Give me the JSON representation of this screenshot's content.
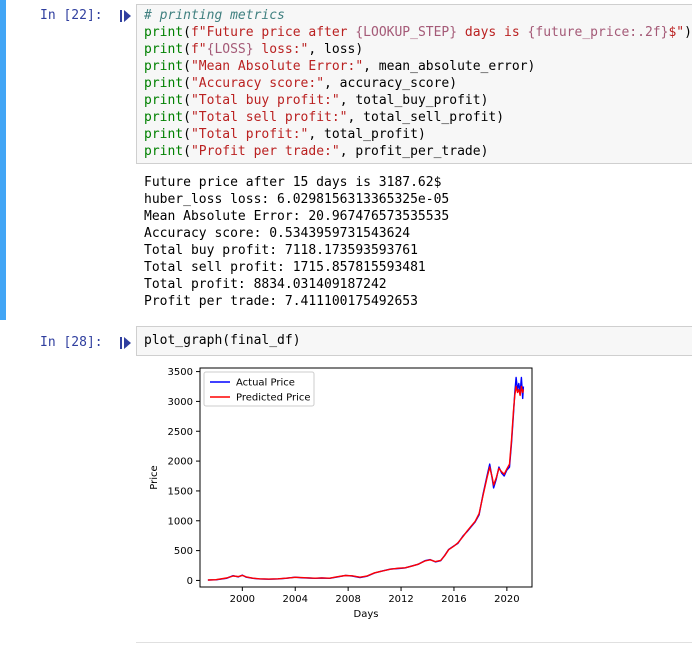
{
  "cell1": {
    "prompt": "In [22]:",
    "code_lines": [
      [
        {
          "c": "cm",
          "t": "# printing metrics"
        }
      ],
      [
        {
          "c": "kw",
          "t": "print"
        },
        {
          "c": "pr",
          "t": "("
        },
        {
          "c": "st",
          "t": "f\"Future price after "
        },
        {
          "c": "sf",
          "t": "{LOOKUP_STEP}"
        },
        {
          "c": "st",
          "t": " days is "
        },
        {
          "c": "sf",
          "t": "{future_price:.2f}"
        },
        {
          "c": "st",
          "t": "$\""
        },
        {
          "c": "pr",
          "t": ")"
        }
      ],
      [
        {
          "c": "kw",
          "t": "print"
        },
        {
          "c": "pr",
          "t": "("
        },
        {
          "c": "st",
          "t": "f\""
        },
        {
          "c": "sf",
          "t": "{LOSS}"
        },
        {
          "c": "st",
          "t": " loss:\""
        },
        {
          "c": "pr",
          "t": ", loss)"
        }
      ],
      [
        {
          "c": "kw",
          "t": "print"
        },
        {
          "c": "pr",
          "t": "("
        },
        {
          "c": "st",
          "t": "\"Mean Absolute Error:\""
        },
        {
          "c": "pr",
          "t": ", mean_absolute_error)"
        }
      ],
      [
        {
          "c": "kw",
          "t": "print"
        },
        {
          "c": "pr",
          "t": "("
        },
        {
          "c": "st",
          "t": "\"Accuracy score:\""
        },
        {
          "c": "pr",
          "t": ", accuracy_score)"
        }
      ],
      [
        {
          "c": "kw",
          "t": "print"
        },
        {
          "c": "pr",
          "t": "("
        },
        {
          "c": "st",
          "t": "\"Total buy profit:\""
        },
        {
          "c": "pr",
          "t": ", total_buy_profit)"
        }
      ],
      [
        {
          "c": "kw",
          "t": "print"
        },
        {
          "c": "pr",
          "t": "("
        },
        {
          "c": "st",
          "t": "\"Total sell profit:\""
        },
        {
          "c": "pr",
          "t": ", total_sell_profit)"
        }
      ],
      [
        {
          "c": "kw",
          "t": "print"
        },
        {
          "c": "pr",
          "t": "("
        },
        {
          "c": "st",
          "t": "\"Total profit:\""
        },
        {
          "c": "pr",
          "t": ", total_profit)"
        }
      ],
      [
        {
          "c": "kw",
          "t": "print"
        },
        {
          "c": "pr",
          "t": "("
        },
        {
          "c": "st",
          "t": "\"Profit per trade:\""
        },
        {
          "c": "pr",
          "t": ", profit_per_trade)"
        }
      ]
    ],
    "output_lines": [
      "Future price after 15 days is 3187.62$",
      "huber_loss loss: 6.0298156313365325e-05",
      "Mean Absolute Error: 20.967476573535535",
      "Accuracy score: 0.5343959731543624",
      "Total buy profit: 7118.173593593761",
      "Total sell profit: 1715.857815593481",
      "Total profit: 8834.031409187242",
      "Profit per trade: 7.411100175492653"
    ]
  },
  "cell2": {
    "prompt": "In [28]:",
    "code_lines": [
      [
        {
          "c": "pr",
          "t": "plot_graph(final_df)"
        }
      ]
    ]
  },
  "chart_data": {
    "type": "line",
    "xlabel": "Days",
    "ylabel": "Price",
    "xlim": [
      1996.8,
      2021.9
    ],
    "ylim": [
      -110,
      3560
    ],
    "xticks": [
      2000,
      2004,
      2008,
      2012,
      2016,
      2020
    ],
    "yticks": [
      0,
      500,
      1000,
      1500,
      2000,
      2500,
      3000,
      3500
    ],
    "legend_position": "top-left",
    "series": [
      {
        "name": "Actual Price",
        "color": "#0000ff",
        "points": [
          [
            1997.4,
            5
          ],
          [
            1998.0,
            10
          ],
          [
            1998.8,
            35
          ],
          [
            1999.3,
            80
          ],
          [
            1999.7,
            60
          ],
          [
            2000.0,
            90
          ],
          [
            2000.3,
            55
          ],
          [
            2000.8,
            35
          ],
          [
            2001.3,
            25
          ],
          [
            2002.0,
            20
          ],
          [
            2002.7,
            25
          ],
          [
            2003.3,
            35
          ],
          [
            2004.0,
            55
          ],
          [
            2004.5,
            45
          ],
          [
            2005.0,
            40
          ],
          [
            2005.5,
            35
          ],
          [
            2006.0,
            40
          ],
          [
            2006.6,
            35
          ],
          [
            2007.2,
            60
          ],
          [
            2007.8,
            85
          ],
          [
            2008.3,
            75
          ],
          [
            2008.9,
            50
          ],
          [
            2009.4,
            70
          ],
          [
            2010.0,
            125
          ],
          [
            2010.6,
            160
          ],
          [
            2011.2,
            190
          ],
          [
            2011.8,
            200
          ],
          [
            2012.3,
            210
          ],
          [
            2012.8,
            240
          ],
          [
            2013.3,
            270
          ],
          [
            2013.8,
            330
          ],
          [
            2014.2,
            350
          ],
          [
            2014.6,
            310
          ],
          [
            2015.0,
            330
          ],
          [
            2015.3,
            420
          ],
          [
            2015.6,
            520
          ],
          [
            2016.0,
            580
          ],
          [
            2016.3,
            620
          ],
          [
            2016.7,
            750
          ],
          [
            2017.0,
            820
          ],
          [
            2017.3,
            900
          ],
          [
            2017.6,
            980
          ],
          [
            2017.9,
            1100
          ],
          [
            2018.2,
            1450
          ],
          [
            2018.5,
            1750
          ],
          [
            2018.7,
            1950
          ],
          [
            2018.9,
            1700
          ],
          [
            2019.0,
            1550
          ],
          [
            2019.2,
            1700
          ],
          [
            2019.4,
            1900
          ],
          [
            2019.6,
            1800
          ],
          [
            2019.8,
            1750
          ],
          [
            2020.0,
            1850
          ],
          [
            2020.2,
            1900
          ],
          [
            2020.35,
            2300
          ],
          [
            2020.5,
            2800
          ],
          [
            2020.6,
            3150
          ],
          [
            2020.7,
            3400
          ],
          [
            2020.8,
            3200
          ],
          [
            2020.9,
            3300
          ],
          [
            2021.0,
            3150
          ],
          [
            2021.1,
            3400
          ],
          [
            2021.2,
            3050
          ],
          [
            2021.25,
            3250
          ]
        ]
      },
      {
        "name": "Predicted Price",
        "color": "#ff0000",
        "points": [
          [
            1997.4,
            8
          ],
          [
            1998.0,
            12
          ],
          [
            1998.8,
            40
          ],
          [
            1999.3,
            75
          ],
          [
            1999.7,
            65
          ],
          [
            2000.0,
            85
          ],
          [
            2000.3,
            60
          ],
          [
            2000.8,
            38
          ],
          [
            2001.3,
            27
          ],
          [
            2002.0,
            22
          ],
          [
            2002.7,
            27
          ],
          [
            2003.3,
            37
          ],
          [
            2004.0,
            52
          ],
          [
            2004.5,
            47
          ],
          [
            2005.0,
            42
          ],
          [
            2005.5,
            37
          ],
          [
            2006.0,
            42
          ],
          [
            2006.6,
            37
          ],
          [
            2007.2,
            62
          ],
          [
            2007.8,
            82
          ],
          [
            2008.3,
            78
          ],
          [
            2008.9,
            55
          ],
          [
            2009.4,
            72
          ],
          [
            2010.0,
            128
          ],
          [
            2010.6,
            158
          ],
          [
            2011.2,
            188
          ],
          [
            2011.8,
            205
          ],
          [
            2012.3,
            212
          ],
          [
            2012.8,
            238
          ],
          [
            2013.3,
            272
          ],
          [
            2013.8,
            325
          ],
          [
            2014.2,
            345
          ],
          [
            2014.6,
            315
          ],
          [
            2015.0,
            335
          ],
          [
            2015.3,
            415
          ],
          [
            2015.6,
            515
          ],
          [
            2016.0,
            575
          ],
          [
            2016.3,
            630
          ],
          [
            2016.7,
            740
          ],
          [
            2017.0,
            830
          ],
          [
            2017.3,
            910
          ],
          [
            2017.6,
            990
          ],
          [
            2017.9,
            1120
          ],
          [
            2018.2,
            1430
          ],
          [
            2018.5,
            1720
          ],
          [
            2018.7,
            1900
          ],
          [
            2018.9,
            1720
          ],
          [
            2019.0,
            1600
          ],
          [
            2019.2,
            1720
          ],
          [
            2019.4,
            1880
          ],
          [
            2019.6,
            1820
          ],
          [
            2019.8,
            1780
          ],
          [
            2020.0,
            1870
          ],
          [
            2020.2,
            1950
          ],
          [
            2020.35,
            2350
          ],
          [
            2020.5,
            2850
          ],
          [
            2020.6,
            3100
          ],
          [
            2020.7,
            3250
          ],
          [
            2020.8,
            3150
          ],
          [
            2020.9,
            3200
          ],
          [
            2021.0,
            3100
          ],
          [
            2021.1,
            3250
          ],
          [
            2021.2,
            3150
          ],
          [
            2021.25,
            3200
          ]
        ]
      }
    ]
  }
}
